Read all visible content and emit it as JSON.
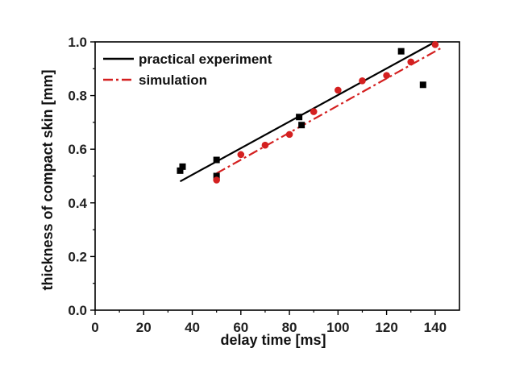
{
  "chart_data": {
    "type": "scatter",
    "title": "",
    "xlabel": "delay time [ms]",
    "ylabel": "thickness of compact skin [mm]",
    "xlim": [
      0,
      150
    ],
    "ylim": [
      0,
      1.0
    ],
    "xticks": [
      0,
      20,
      40,
      60,
      80,
      100,
      120,
      140
    ],
    "yticks": [
      0.0,
      0.2,
      0.4,
      0.6,
      0.8,
      1.0
    ],
    "xtick_labels": [
      "0",
      "20",
      "40",
      "60",
      "80",
      "100",
      "120",
      "140"
    ],
    "ytick_labels": [
      "0.0",
      "0.2",
      "0.4",
      "0.6",
      "0.8",
      "1.0"
    ],
    "grid": false,
    "legend_position": "top-left",
    "series": [
      {
        "name": "practical experiment",
        "marker": "square",
        "color": "#000000",
        "points": [
          [
            35,
            0.52
          ],
          [
            36,
            0.535
          ],
          [
            50,
            0.56
          ],
          [
            50,
            0.5
          ],
          [
            84,
            0.72
          ],
          [
            85,
            0.69
          ],
          [
            126,
            0.965
          ],
          [
            135,
            0.84
          ]
        ],
        "fit_line": {
          "x": [
            35,
            140
          ],
          "y": [
            0.48,
            1.0
          ],
          "style": "solid"
        }
      },
      {
        "name": "simulation",
        "marker": "circle",
        "color": "#d42020",
        "points": [
          [
            50,
            0.485
          ],
          [
            60,
            0.58
          ],
          [
            70,
            0.615
          ],
          [
            80,
            0.655
          ],
          [
            90,
            0.74
          ],
          [
            100,
            0.82
          ],
          [
            110,
            0.855
          ],
          [
            120,
            0.875
          ],
          [
            130,
            0.925
          ],
          [
            140,
            0.99
          ]
        ],
        "fit_line": {
          "x": [
            50,
            143
          ],
          "y": [
            0.51,
            0.98
          ],
          "style": "dash-dot"
        }
      }
    ]
  }
}
